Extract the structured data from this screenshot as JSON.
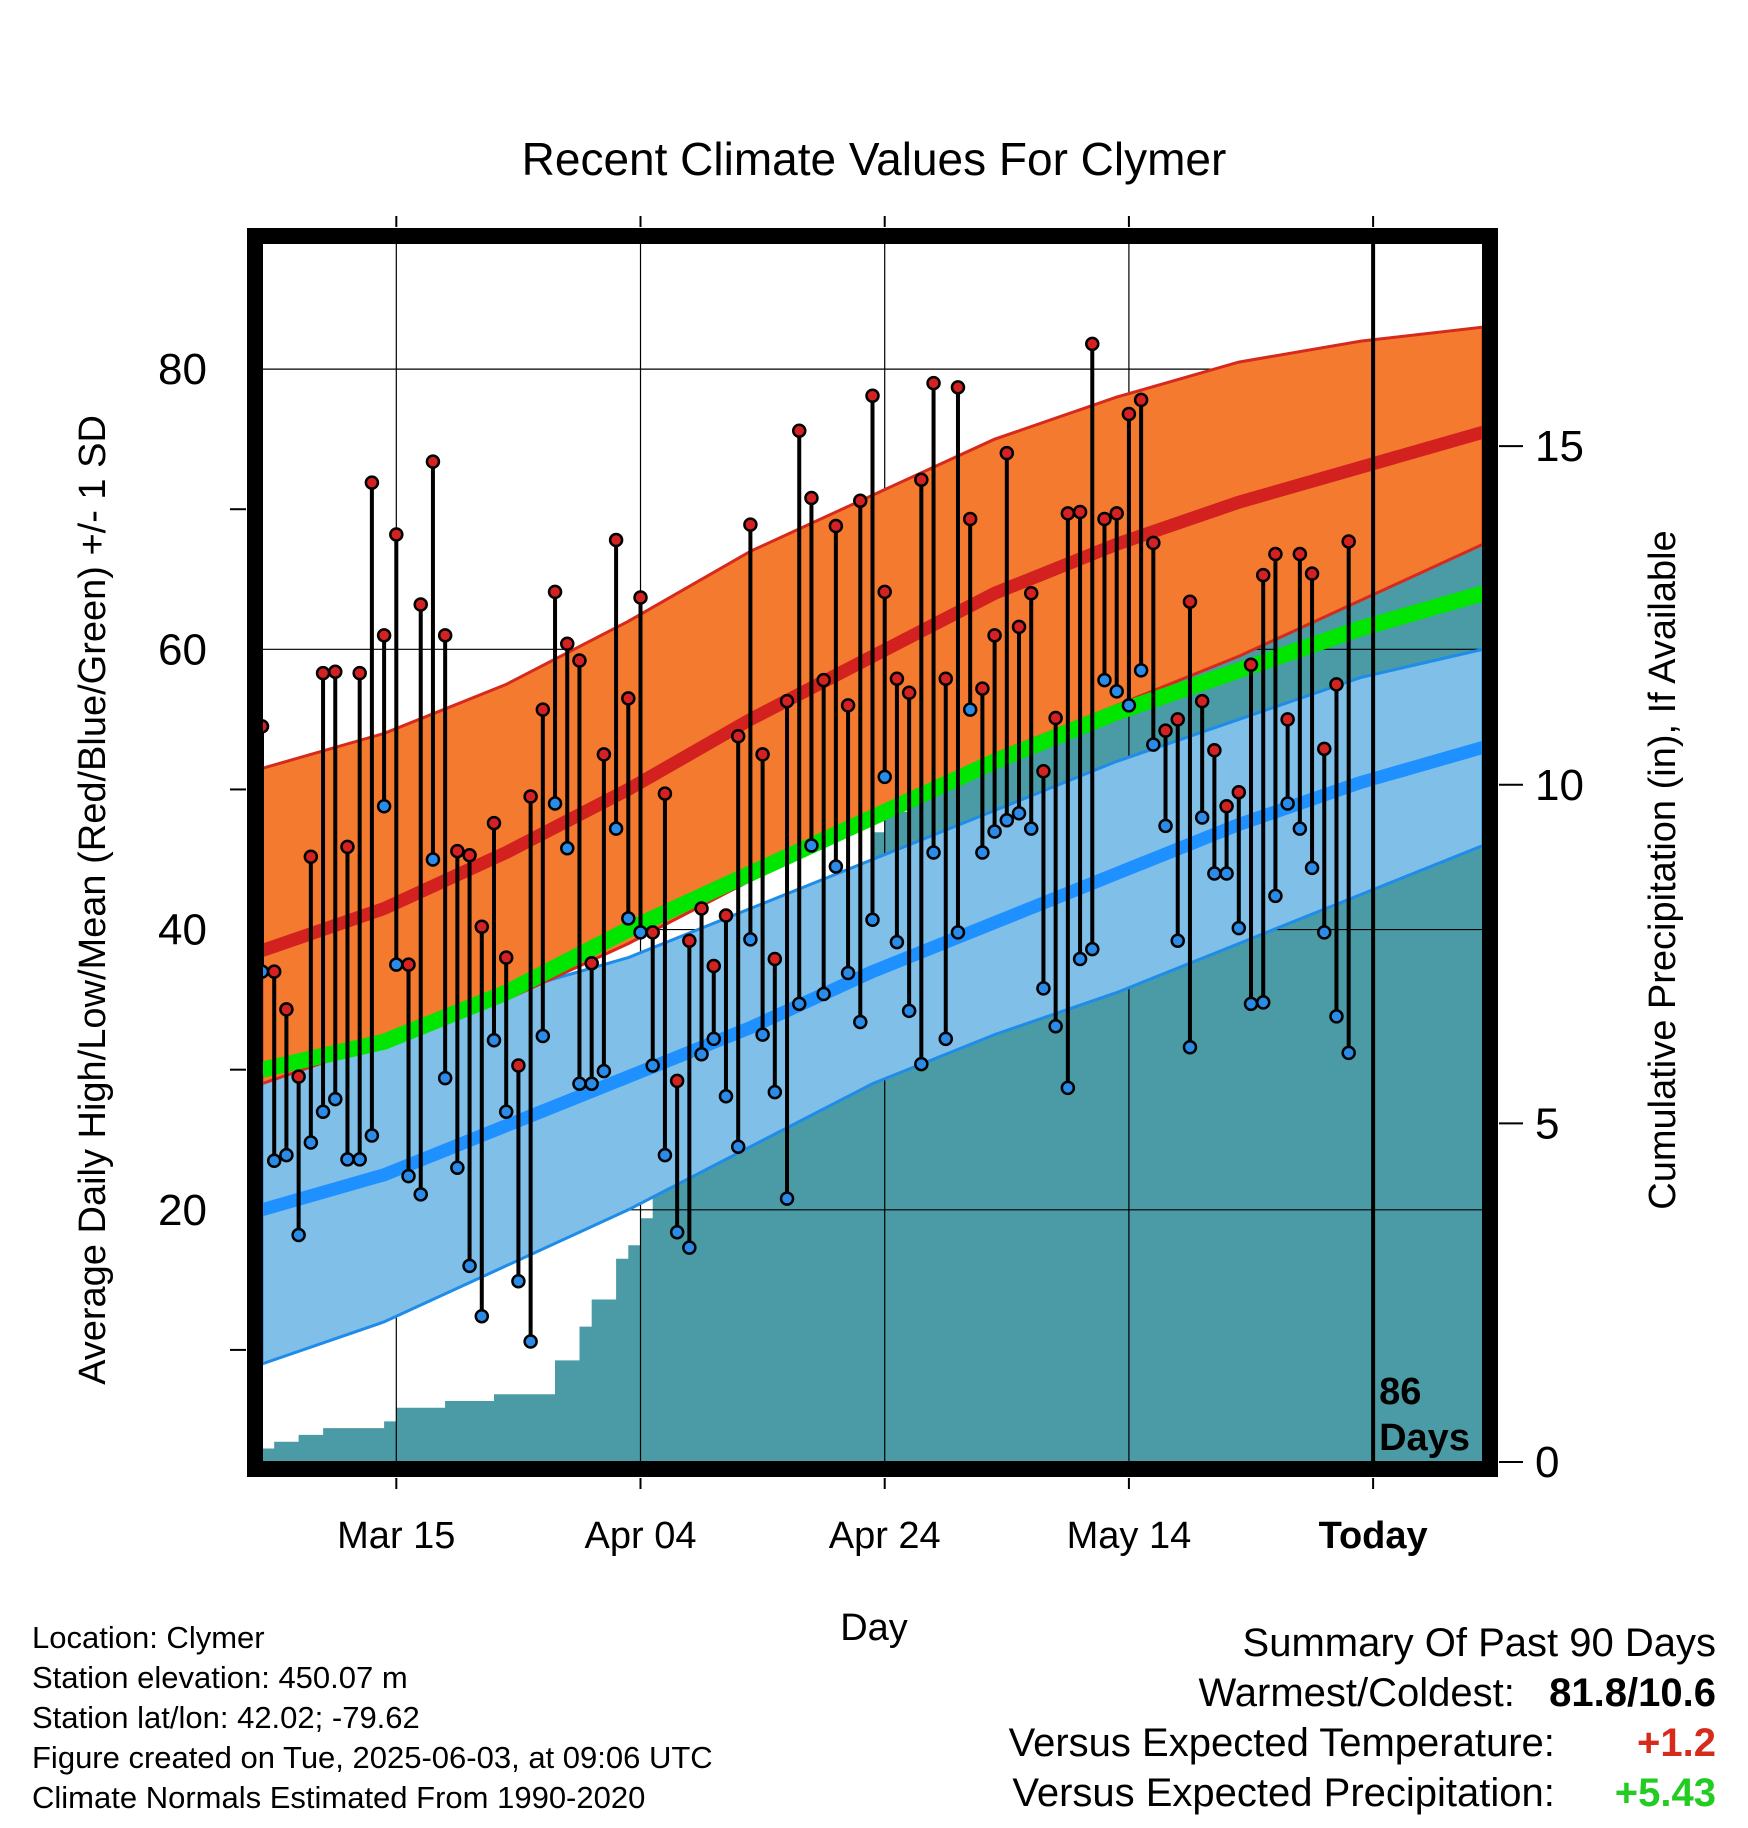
{
  "chart_data": {
    "type": "line",
    "title": "Recent Climate Values For Clymer",
    "xlabel": "Day",
    "ylabel_left": "Average Daily High/Low/Mean (Red/Blue/Green) +/- 1 SD",
    "ylabel_right": "Cumulative Precipitation (in), If Available",
    "x_tick_labels": [
      {
        "day": 12,
        "label": "Mar 15"
      },
      {
        "day": 32,
        "label": "Apr 04"
      },
      {
        "day": 52,
        "label": "Apr 24"
      },
      {
        "day": 72,
        "label": "May 14"
      },
      {
        "day": 92,
        "label": "Today"
      }
    ],
    "x_range_days": [
      1,
      101
    ],
    "today_day": 92,
    "days_label": [
      "86",
      "Days"
    ],
    "ylim": [
      2,
      89
    ],
    "y_ticks": [
      20,
      40,
      60,
      80
    ],
    "precip_ylim": [
      0,
      18
    ],
    "precip_ticks": [
      0,
      5,
      10,
      15
    ],
    "grid": true,
    "colors": {
      "high_band": "#f47a30",
      "high_band_edge": "#d62a1c",
      "high_mean": "#d2211f",
      "low_band": "#7fbfe8",
      "low_band_edge": "#1e8ce8",
      "low_mean": "#1e90ff",
      "mean": "#00e600",
      "precip": "#4a9ba5",
      "high_dot": "#d42222",
      "low_dot": "#2a8ce8",
      "positive_temp": "#d62a1c",
      "positive_precip": "#22cc22"
    },
    "normals": {
      "day": [
        1,
        11,
        21,
        31,
        41,
        51,
        61,
        71,
        81,
        91,
        101
      ],
      "high_mean": [
        38.5,
        41.5,
        45.5,
        50,
        55,
        59.5,
        64,
        67.5,
        70.5,
        73,
        75.5
      ],
      "high_plus_sd": [
        51.5,
        54,
        57.5,
        62,
        67,
        71,
        75,
        78,
        80.5,
        82,
        83
      ],
      "high_minus_sd": [
        29,
        32,
        35,
        39,
        43.5,
        48,
        52.5,
        56,
        59.5,
        63.5,
        67.5
      ],
      "low_mean": [
        20,
        22.5,
        26,
        29.5,
        33,
        37,
        40.5,
        44,
        47.5,
        50.5,
        53
      ],
      "low_plus_sd": [
        30.5,
        33,
        35.5,
        38,
        41.5,
        45,
        48.5,
        52,
        55,
        58,
        60
      ],
      "low_minus_sd": [
        9,
        12,
        16,
        20,
        24.5,
        29,
        32.5,
        35.5,
        39,
        42.5,
        46
      ],
      "mean": [
        30,
        32,
        35.5,
        40,
        44,
        48,
        52,
        55.5,
        58.5,
        61.5,
        64
      ]
    },
    "high_temps": [
      54.5,
      37,
      34.3,
      29.5,
      45.2,
      58.3,
      58.4,
      45.9,
      58.3,
      71.9,
      61,
      68.2,
      37.5,
      63.2,
      73.4,
      61,
      45.6,
      45.3,
      40.2,
      47.6,
      38,
      30.3,
      49.5,
      55.7,
      64.1,
      60.4,
      59.2,
      37.6,
      52.5,
      67.8,
      56.5,
      63.7,
      39.8,
      49.7,
      29.2,
      39.2,
      41.5,
      37.4,
      41,
      53.8,
      68.9,
      52.5,
      37.9,
      56.3,
      75.6,
      70.8,
      57.8,
      68.8,
      56,
      70.6,
      78.1,
      64.1,
      57.9,
      56.9,
      72.1,
      79,
      57.9,
      78.7,
      69.3,
      57.2,
      61,
      74,
      61.6,
      64,
      51.3,
      55.1,
      69.7,
      69.8,
      81.8,
      69.3,
      69.7,
      76.8,
      77.8,
      67.6,
      54.2,
      55,
      63.4,
      56.3,
      52.8,
      48.8,
      49.8,
      58.9,
      65.3,
      66.8,
      55,
      66.8,
      65.4,
      52.9,
      57.5,
      67.7
    ],
    "low_temps": [
      37,
      23.5,
      23.9,
      18.2,
      24.8,
      27,
      27.9,
      23.6,
      23.6,
      25.3,
      48.8,
      37.5,
      22.4,
      21.1,
      45,
      29.4,
      23,
      16,
      12.4,
      32.1,
      27,
      14.9,
      10.6,
      32.4,
      49,
      45.8,
      29,
      29,
      29.9,
      47.2,
      40.8,
      39.8,
      30.3,
      23.9,
      18.4,
      17.3,
      31.1,
      32.2,
      28.1,
      24.5,
      39.3,
      32.5,
      28.4,
      20.8,
      34.7,
      46,
      35.4,
      44.5,
      36.9,
      33.4,
      40.7,
      50.9,
      39.1,
      34.2,
      30.4,
      45.5,
      32.2,
      39.8,
      55.7,
      45.5,
      47,
      47.8,
      48.3,
      47.2,
      35.8,
      33.1,
      28.7,
      37.9,
      38.6,
      57.8,
      57,
      56,
      58.5,
      53.2,
      47.4,
      39.2,
      31.6,
      48,
      44,
      44,
      40.1,
      34.7,
      34.8,
      42.4,
      49,
      47.2,
      44.4,
      39.8,
      33.8,
      31.2
    ],
    "cumulative_precip": {
      "day": [
        1,
        2,
        4,
        6,
        10,
        11,
        12,
        13,
        16,
        17,
        20,
        21,
        22,
        23,
        24,
        25,
        26,
        27,
        28,
        29,
        30,
        31,
        32,
        33,
        34,
        35,
        36,
        37,
        38,
        39,
        40,
        41,
        42,
        43,
        44,
        45,
        46,
        47,
        48,
        49,
        50,
        51,
        52,
        53,
        54,
        55,
        56,
        57,
        58,
        59,
        60,
        61,
        62,
        63,
        64,
        65,
        66,
        67,
        68,
        69,
        70,
        71,
        72,
        73,
        74,
        75,
        76,
        77,
        78,
        79,
        80,
        81,
        82,
        83,
        84,
        85,
        86,
        87,
        88,
        89,
        90,
        91,
        92,
        101
      ],
      "value": [
        0.2,
        0.3,
        0.4,
        0.5,
        0.5,
        0.6,
        0.8,
        0.8,
        0.9,
        0.9,
        1,
        1,
        1,
        1,
        1,
        1.5,
        1.5,
        2,
        2.4,
        2.4,
        3,
        3.2,
        3.6,
        4.2,
        4.3,
        4.4,
        4.5,
        4.5,
        5,
        5,
        5,
        5.5,
        5.6,
        5.6,
        6.6,
        6.7,
        6.9,
        7,
        8,
        8,
        8.6,
        9.3,
        9.6,
        9.6,
        10.5,
        10.8,
        11.1,
        11.5,
        11.6,
        11.6,
        11.6,
        11.6,
        11.6,
        11.8,
        12,
        12.1,
        12.4,
        12.5,
        12.5,
        12.5,
        12.5,
        12.5,
        12.5,
        12.5,
        13,
        13.3,
        13.3,
        13.3,
        13.5,
        14.2,
        14.4,
        14.5,
        14.6,
        14.6,
        14.7,
        14.7,
        14.8,
        14.8,
        15,
        15,
        15.1,
        15.2,
        15.2,
        15.2
      ]
    }
  },
  "footer_left": {
    "location": "Location: Clymer",
    "elevation": "Station elevation: 450.07 m",
    "latlon": "Station lat/lon: 42.02; -79.62",
    "created": "Figure created on Tue, 2025-06-03, at 09:06 UTC",
    "normals": "Climate Normals Estimated From 1990-2020"
  },
  "footer_right": {
    "heading": "Summary Of Past 90 Days",
    "warmest_label": "Warmest/Coldest:",
    "warmest_value": "81.8/10.6",
    "temp_label": "Versus Expected Temperature:",
    "temp_value": "+1.2",
    "precip_label": "Versus Expected Precipitation:",
    "precip_value": "+5.43"
  }
}
